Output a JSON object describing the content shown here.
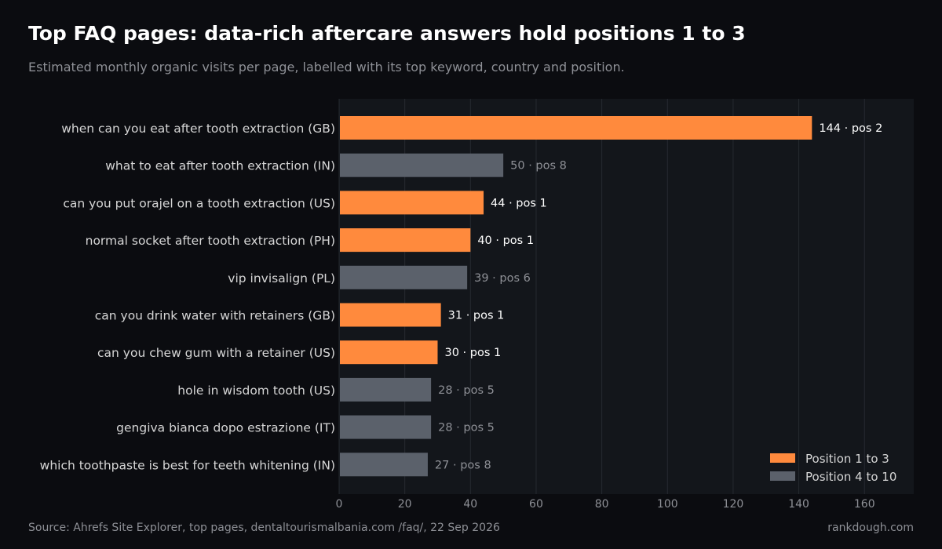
{
  "header": {
    "title": "Top FAQ pages: data-rich aftercare answers hold positions 1 to 3",
    "subtitle": "Estimated monthly organic visits per page, labelled with its top keyword, country and position."
  },
  "footer": {
    "source": "Source: Ahrefs Site Explorer, top pages, dentaltourismalbania.com /faq/, 22 Sep 2026",
    "brand": "rankdough.com"
  },
  "colors": {
    "top3": "#ff8a3d",
    "other": "#5b616b",
    "plot_bg": "#13161b",
    "grid": "#262a31",
    "label_strong": "#ffffff",
    "label_muted": "#8e9096",
    "category_text": "#d6d6d6"
  },
  "chart_data": {
    "type": "bar",
    "orientation": "horizontal",
    "xlim": [
      0,
      175
    ],
    "xticks": [
      0,
      20,
      40,
      60,
      80,
      100,
      120,
      140,
      160
    ],
    "grid": true,
    "legend_position": "bottom-right",
    "legend": [
      {
        "label": "Position 1 to 3",
        "group": "top3"
      },
      {
        "label": "Position 4 to 10",
        "group": "other"
      }
    ],
    "separator": "·",
    "position_prefix": "pos",
    "bars": [
      {
        "category": "when can you eat after tooth extraction (GB)",
        "value": 144,
        "position": 2
      },
      {
        "category": "what to eat after tooth extraction (IN)",
        "value": 50,
        "position": 8
      },
      {
        "category": "can you put orajel on a tooth extraction (US)",
        "value": 44,
        "position": 1
      },
      {
        "category": "normal socket after tooth extraction (PH)",
        "value": 40,
        "position": 1
      },
      {
        "category": "vip invisalign (PL)",
        "value": 39,
        "position": 6
      },
      {
        "category": "can you drink water with retainers (GB)",
        "value": 31,
        "position": 1
      },
      {
        "category": "can you chew gum with a retainer (US)",
        "value": 30,
        "position": 1
      },
      {
        "category": "hole in wisdom tooth (US)",
        "value": 28,
        "position": 5
      },
      {
        "category": "gengiva bianca dopo estrazione (IT)",
        "value": 28,
        "position": 5
      },
      {
        "category": "which toothpaste is best for teeth whitening (IN)",
        "value": 27,
        "position": 8
      }
    ]
  }
}
